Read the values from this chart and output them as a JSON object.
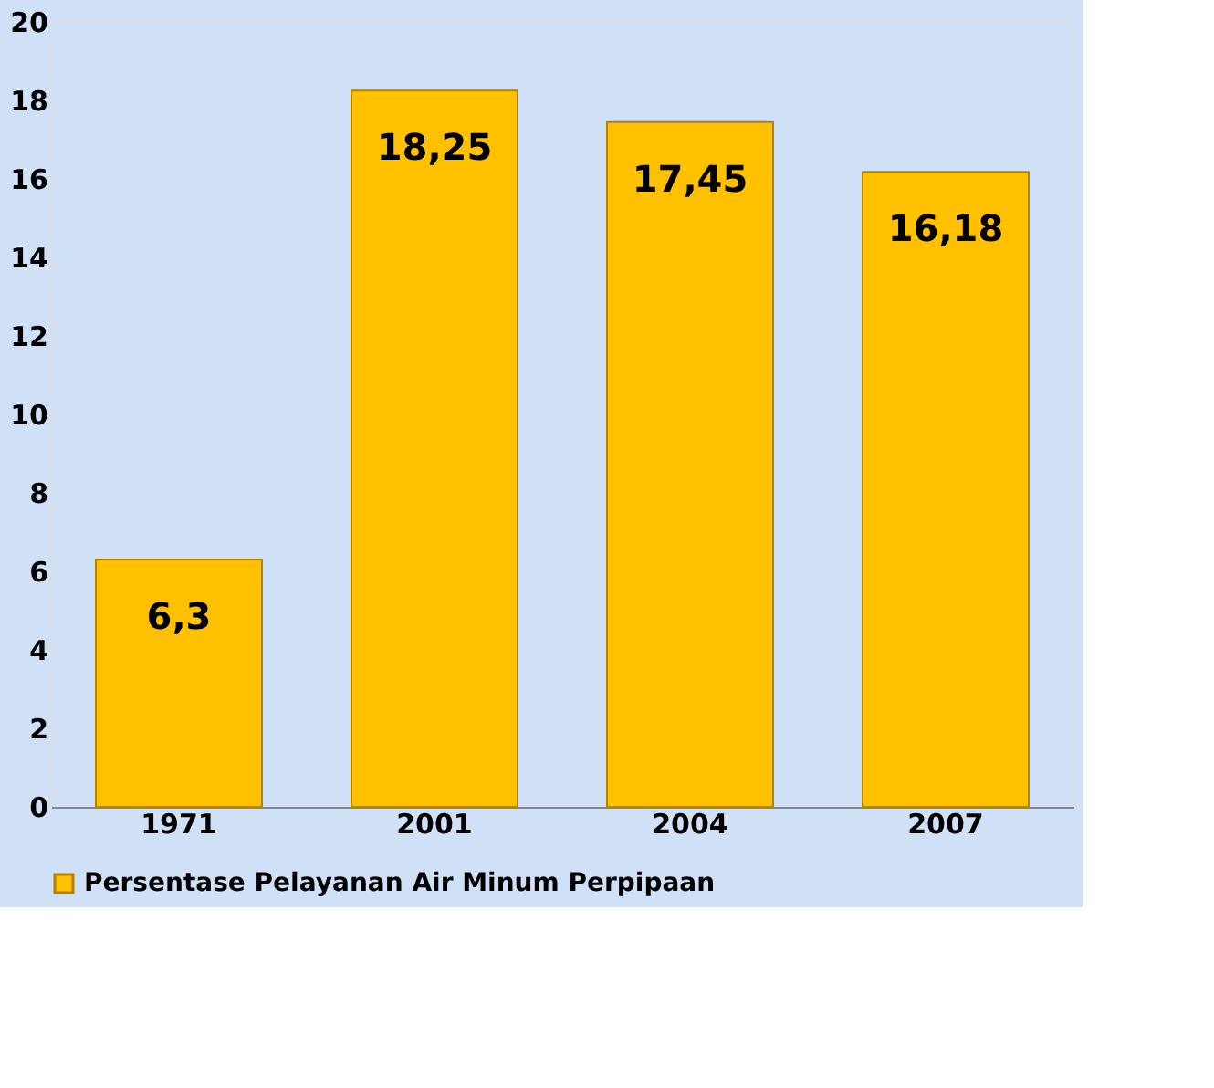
{
  "chart_data": {
    "type": "bar",
    "categories": [
      "1971",
      "2001",
      "2004",
      "2007"
    ],
    "series": [
      {
        "name": "Persentase Pelayanan Air Minum Perpipaan",
        "color": "#ffc000",
        "values": [
          6.3,
          18.25,
          17.45,
          16.18
        ],
        "value_labels": [
          "6,3",
          "18,25",
          "17,45",
          "16,18"
        ]
      }
    ],
    "ylim": [
      0,
      20
    ],
    "yticks": [
      0,
      2,
      4,
      6,
      8,
      10,
      12,
      14,
      16,
      18,
      20
    ],
    "grid": false,
    "legend": "bottom"
  }
}
